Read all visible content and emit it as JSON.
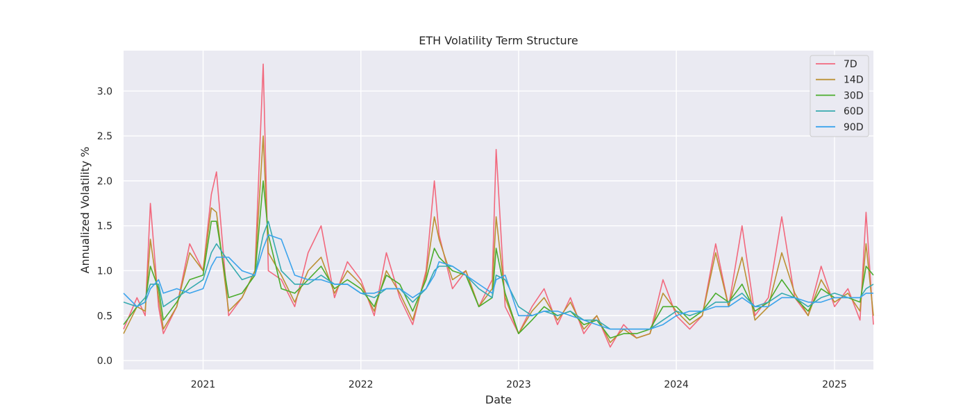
{
  "chart_data": {
    "type": "line",
    "title": "ETH Volatility Term Structure",
    "xlabel": "Date",
    "ylabel": "Annualized Volatility %",
    "xlim": [
      "2020-07-01",
      "2025-04-01"
    ],
    "ylim": [
      -0.1,
      3.45
    ],
    "x_ticks": [
      "2021-01-01",
      "2022-01-01",
      "2023-01-01",
      "2024-01-01",
      "2025-01-01"
    ],
    "x_tick_labels": [
      "2021",
      "2022",
      "2023",
      "2024",
      "2025"
    ],
    "y_ticks": [
      0.0,
      0.5,
      1.0,
      1.5,
      2.0,
      2.5,
      3.0
    ],
    "y_tick_labels": [
      "0.0",
      "0.5",
      "1.0",
      "1.5",
      "2.0",
      "2.5",
      "3.0"
    ],
    "grid": true,
    "legend_position": "top-right",
    "background": "#eaeaf2",
    "x": [
      "2020-07-01",
      "2020-08-01",
      "2020-08-20",
      "2020-09-01",
      "2020-09-20",
      "2020-10-01",
      "2020-11-01",
      "2020-12-01",
      "2021-01-01",
      "2021-01-20",
      "2021-02-01",
      "2021-03-01",
      "2021-04-01",
      "2021-05-01",
      "2021-05-20",
      "2021-06-01",
      "2021-07-01",
      "2021-08-01",
      "2021-09-01",
      "2021-10-01",
      "2021-11-01",
      "2021-12-01",
      "2022-01-01",
      "2022-02-01",
      "2022-03-01",
      "2022-04-01",
      "2022-05-01",
      "2022-06-01",
      "2022-06-20",
      "2022-07-01",
      "2022-08-01",
      "2022-09-01",
      "2022-10-01",
      "2022-11-01",
      "2022-11-10",
      "2022-12-01",
      "2023-01-01",
      "2023-02-01",
      "2023-03-01",
      "2023-04-01",
      "2023-05-01",
      "2023-06-01",
      "2023-07-01",
      "2023-08-01",
      "2023-09-01",
      "2023-10-01",
      "2023-11-01",
      "2023-12-01",
      "2024-01-01",
      "2024-02-01",
      "2024-03-01",
      "2024-04-01",
      "2024-05-01",
      "2024-06-01",
      "2024-07-01",
      "2024-08-01",
      "2024-09-01",
      "2024-10-01",
      "2024-11-01",
      "2024-12-01",
      "2025-01-01",
      "2025-02-01",
      "2025-03-01",
      "2025-03-15",
      "2025-04-01"
    ],
    "series": [
      {
        "name": "7D",
        "color": "#f2687d",
        "values": [
          0.35,
          0.7,
          0.5,
          1.75,
          0.6,
          0.3,
          0.6,
          1.3,
          1.0,
          1.85,
          2.1,
          0.5,
          0.7,
          1.0,
          3.3,
          1.0,
          0.9,
          0.6,
          1.2,
          1.5,
          0.7,
          1.1,
          0.9,
          0.5,
          1.2,
          0.7,
          0.4,
          1.0,
          2.0,
          1.4,
          0.8,
          1.0,
          0.6,
          0.9,
          2.35,
          0.6,
          0.3,
          0.6,
          0.8,
          0.4,
          0.7,
          0.3,
          0.5,
          0.15,
          0.4,
          0.25,
          0.3,
          0.9,
          0.5,
          0.35,
          0.5,
          1.3,
          0.6,
          1.5,
          0.5,
          0.7,
          1.6,
          0.7,
          0.5,
          1.05,
          0.6,
          0.8,
          0.45,
          1.65,
          0.4
        ]
      },
      {
        "name": "14D",
        "color": "#bb9032",
        "values": [
          0.3,
          0.6,
          0.55,
          1.35,
          0.7,
          0.35,
          0.6,
          1.2,
          1.0,
          1.7,
          1.65,
          0.55,
          0.7,
          1.0,
          2.5,
          1.2,
          0.95,
          0.65,
          1.0,
          1.15,
          0.75,
          1.0,
          0.85,
          0.55,
          1.0,
          0.75,
          0.45,
          0.95,
          1.6,
          1.35,
          0.9,
          1.0,
          0.6,
          0.8,
          1.6,
          0.7,
          0.3,
          0.55,
          0.7,
          0.45,
          0.65,
          0.35,
          0.5,
          0.2,
          0.35,
          0.25,
          0.3,
          0.75,
          0.55,
          0.4,
          0.5,
          1.2,
          0.6,
          1.15,
          0.45,
          0.6,
          1.2,
          0.75,
          0.5,
          0.9,
          0.65,
          0.75,
          0.55,
          1.3,
          0.5
        ]
      },
      {
        "name": "30D",
        "color": "#4aac2c",
        "values": [
          0.4,
          0.6,
          0.65,
          1.05,
          0.8,
          0.45,
          0.65,
          0.9,
          0.95,
          1.55,
          1.55,
          0.7,
          0.75,
          0.95,
          2.0,
          1.4,
          0.8,
          0.75,
          0.9,
          1.05,
          0.8,
          0.9,
          0.8,
          0.6,
          0.95,
          0.85,
          0.55,
          0.9,
          1.25,
          1.15,
          1.0,
          0.95,
          0.6,
          0.7,
          1.25,
          0.75,
          0.3,
          0.45,
          0.6,
          0.5,
          0.55,
          0.4,
          0.45,
          0.25,
          0.3,
          0.3,
          0.35,
          0.6,
          0.6,
          0.45,
          0.55,
          0.75,
          0.65,
          0.85,
          0.55,
          0.65,
          0.9,
          0.7,
          0.55,
          0.8,
          0.7,
          0.7,
          0.65,
          1.05,
          0.95
        ]
      },
      {
        "name": "60D",
        "color": "#36aaaf",
        "values": [
          0.65,
          0.6,
          0.7,
          0.85,
          0.85,
          0.6,
          0.7,
          0.8,
          0.9,
          1.2,
          1.3,
          1.1,
          0.9,
          0.95,
          1.4,
          1.55,
          1.0,
          0.85,
          0.85,
          0.95,
          0.85,
          0.85,
          0.75,
          0.7,
          0.8,
          0.8,
          0.65,
          0.8,
          1.0,
          1.05,
          1.05,
          0.95,
          0.8,
          0.7,
          0.95,
          0.9,
          0.6,
          0.5,
          0.55,
          0.5,
          0.55,
          0.45,
          0.45,
          0.35,
          0.35,
          0.35,
          0.35,
          0.45,
          0.55,
          0.5,
          0.55,
          0.65,
          0.65,
          0.75,
          0.6,
          0.65,
          0.75,
          0.7,
          0.6,
          0.7,
          0.75,
          0.7,
          0.7,
          0.8,
          0.85
        ]
      },
      {
        "name": "90D",
        "color": "#3ba3ec",
        "values": [
          0.75,
          0.6,
          0.65,
          0.8,
          0.9,
          0.75,
          0.8,
          0.75,
          0.8,
          1.05,
          1.15,
          1.15,
          1.0,
          0.95,
          1.25,
          1.4,
          1.35,
          0.95,
          0.9,
          0.9,
          0.85,
          0.85,
          0.75,
          0.75,
          0.8,
          0.8,
          0.7,
          0.8,
          0.95,
          1.1,
          1.05,
          0.95,
          0.85,
          0.75,
          0.9,
          0.95,
          0.5,
          0.5,
          0.55,
          0.55,
          0.5,
          0.45,
          0.4,
          0.35,
          0.35,
          0.35,
          0.35,
          0.4,
          0.5,
          0.55,
          0.55,
          0.6,
          0.6,
          0.7,
          0.6,
          0.6,
          0.7,
          0.7,
          0.65,
          0.65,
          0.7,
          0.7,
          0.7,
          0.75,
          0.75
        ]
      }
    ]
  }
}
